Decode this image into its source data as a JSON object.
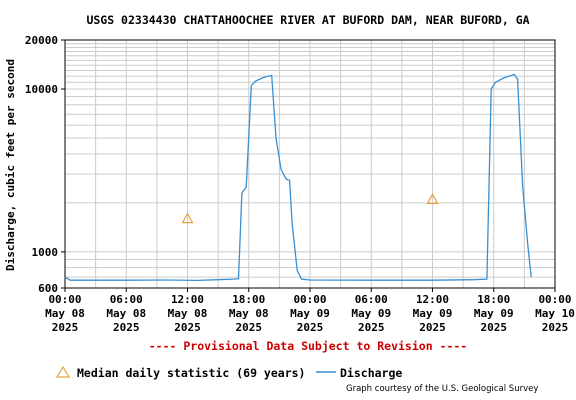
{
  "chart_data": {
    "type": "line",
    "title": "USGS 02334430 CHATTAHOOCHEE RIVER AT BUFORD DAM, NEAR BUFORD, GA",
    "ylabel": "Discharge, cubic feet per second",
    "yscale": "log",
    "ylim": [
      600,
      20000
    ],
    "y_ticks": [
      {
        "value": 600,
        "label": "600"
      },
      {
        "value": 1000,
        "label": "1000"
      },
      {
        "value": 10000,
        "label": "10000"
      },
      {
        "value": 20000,
        "label": "20000"
      }
    ],
    "x_ticks": [
      {
        "value": "2025-05-08 00:00",
        "label": [
          "00:00",
          "May 08",
          "2025"
        ]
      },
      {
        "value": "2025-05-08 06:00",
        "label": [
          "06:00",
          "May 08",
          "2025"
        ]
      },
      {
        "value": "2025-05-08 12:00",
        "label": [
          "12:00",
          "May 08",
          "2025"
        ]
      },
      {
        "value": "2025-05-08 18:00",
        "label": [
          "18:00",
          "May 08",
          "2025"
        ]
      },
      {
        "value": "2025-05-09 00:00",
        "label": [
          "00:00",
          "May 09",
          "2025"
        ]
      },
      {
        "value": "2025-05-09 06:00",
        "label": [
          "06:00",
          "May 09",
          "2025"
        ]
      },
      {
        "value": "2025-05-09 12:00",
        "label": [
          "12:00",
          "May 09",
          "2025"
        ]
      },
      {
        "value": "2025-05-09 18:00",
        "label": [
          "18:00",
          "May 09",
          "2025"
        ]
      },
      {
        "value": "2025-05-10 00:00",
        "label": [
          "00:00",
          "May 10",
          "2025"
        ]
      }
    ],
    "xlim": [
      "2025-05-08 00:00",
      "2025-05-10 00:00"
    ],
    "grid": true,
    "series": [
      {
        "name": "Discharge",
        "color": "#3a8fd0",
        "points": [
          [
            "2025-05-08 00:00",
            700
          ],
          [
            "2025-05-08 00:30",
            670
          ],
          [
            "2025-05-08 06:00",
            670
          ],
          [
            "2025-05-08 10:00",
            672
          ],
          [
            "2025-05-08 13:00",
            668
          ],
          [
            "2025-05-08 15:00",
            675
          ],
          [
            "2025-05-08 16:30",
            680
          ],
          [
            "2025-05-08 17:00",
            685
          ],
          [
            "2025-05-08 17:20",
            2300
          ],
          [
            "2025-05-08 17:45",
            2500
          ],
          [
            "2025-05-08 18:15",
            10500
          ],
          [
            "2025-05-08 18:40",
            11200
          ],
          [
            "2025-05-08 19:30",
            11800
          ],
          [
            "2025-05-08 20:15",
            12100
          ],
          [
            "2025-05-08 20:40",
            5000
          ],
          [
            "2025-05-08 21:10",
            3200
          ],
          [
            "2025-05-08 21:40",
            2800
          ],
          [
            "2025-05-08 22:00",
            2750
          ],
          [
            "2025-05-08 22:15",
            1500
          ],
          [
            "2025-05-08 22:45",
            770
          ],
          [
            "2025-05-08 23:10",
            680
          ],
          [
            "2025-05-09 00:00",
            672
          ],
          [
            "2025-05-09 06:00",
            670
          ],
          [
            "2025-05-09 12:00",
            670
          ],
          [
            "2025-05-09 16:00",
            675
          ],
          [
            "2025-05-09 17:20",
            680
          ],
          [
            "2025-05-09 17:45",
            10000
          ],
          [
            "2025-05-09 18:10",
            11000
          ],
          [
            "2025-05-09 19:00",
            11700
          ],
          [
            "2025-05-09 20:00",
            12300
          ],
          [
            "2025-05-09 20:20",
            11500
          ],
          [
            "2025-05-09 20:50",
            2500
          ],
          [
            "2025-05-09 21:20",
            1100
          ],
          [
            "2025-05-09 21:40",
            700
          ]
        ]
      },
      {
        "name": "Median daily statistic (69 years)",
        "color": "#e6a23c",
        "marker": "triangle",
        "points": [
          [
            "2025-05-08 12:00",
            1600
          ],
          [
            "2025-05-09 12:00",
            2100
          ]
        ]
      }
    ]
  },
  "notice": "---- Provisional Data Subject to Revision ----",
  "legend": {
    "median_label": "Median daily statistic (69 years)",
    "discharge_label": "Discharge"
  },
  "credit": "Graph courtesy of the U.S. Geological Survey",
  "colors": {
    "grid": "#cccccc",
    "discharge": "#3a8fd0",
    "median": "#e6a23c",
    "notice": "#cc0000"
  }
}
